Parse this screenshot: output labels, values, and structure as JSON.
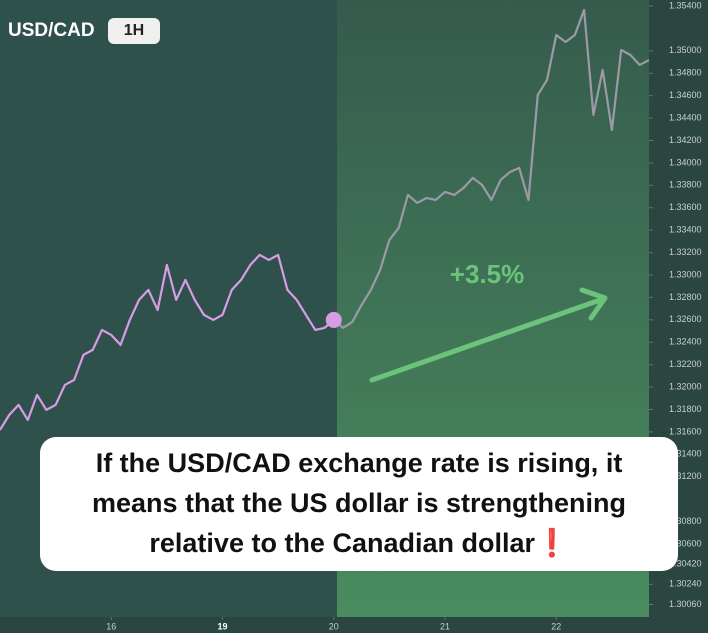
{
  "chart_data": {
    "type": "line",
    "title": "USD/CAD",
    "badge": "1H",
    "annotation": "+3.5%",
    "caption": [
      "If the USD/CAD exchange rate is rising, it",
      "means that the US dollar is strengthening",
      "relative to the Canadian dollar❗"
    ],
    "x": [
      -24,
      -22,
      -20,
      -18,
      -16,
      -14,
      -12,
      -10,
      -8,
      -6,
      -4,
      -2,
      0,
      2,
      4,
      6,
      8,
      10,
      12,
      14,
      16,
      18,
      20,
      22,
      24,
      26,
      28,
      30,
      32,
      34,
      36,
      38,
      40,
      42,
      44,
      46,
      48,
      50,
      52,
      54,
      56,
      58,
      60,
      62,
      64,
      66,
      68,
      70,
      72,
      74,
      76,
      78,
      80,
      82,
      84,
      86,
      88,
      90,
      92,
      94,
      96,
      98,
      100,
      102,
      104,
      106,
      108,
      110,
      112,
      114,
      116
    ],
    "series": [
      {
        "color": "#d89ce7",
        "values": [
          1.31618,
          1.31752,
          1.31841,
          1.31707,
          1.3193,
          1.31796,
          1.31841,
          1.32019,
          1.32064,
          1.32287,
          1.32332,
          1.3251,
          1.32465,
          1.32376,
          1.32599,
          1.32778,
          1.32867,
          1.32688,
          1.3309,
          1.32778,
          1.32956,
          1.32778,
          1.32644,
          1.32599,
          1.32644,
          1.32867,
          1.32956,
          1.3309,
          1.33179,
          1.33134,
          1.33179,
          1.32867,
          1.32778,
          1.32644,
          1.3251,
          1.32528,
          1.32599,
          null,
          null,
          null,
          null,
          null,
          null,
          null,
          null,
          null,
          null,
          null,
          null,
          null,
          null,
          null,
          null,
          null,
          null,
          null,
          null,
          null,
          null,
          null,
          null,
          null,
          null,
          null,
          null,
          null,
          null,
          null,
          null,
          null,
          null
        ]
      },
      {
        "color": "#9b9aa6",
        "values": [
          null,
          null,
          null,
          null,
          null,
          null,
          null,
          null,
          null,
          null,
          null,
          null,
          null,
          null,
          null,
          null,
          null,
          null,
          null,
          null,
          null,
          null,
          null,
          null,
          null,
          null,
          null,
          null,
          null,
          null,
          null,
          null,
          null,
          null,
          null,
          null,
          1.32599,
          1.32528,
          1.32581,
          1.32733,
          1.32867,
          1.33045,
          1.33313,
          1.3342,
          1.33714,
          1.33643,
          1.33687,
          1.3367,
          1.33741,
          1.33714,
          1.33777,
          1.33866,
          1.33803,
          1.3367,
          1.33848,
          1.33919,
          1.33955,
          1.3367,
          1.34606,
          1.3474,
          1.35141,
          1.35079,
          1.35141,
          1.35364,
          1.34428,
          1.34829,
          1.34294,
          1.35008,
          1.34963,
          1.34874,
          1.34918
        ]
      }
    ],
    "xlim": [
      -24,
      116
    ],
    "xticks": [
      {
        "value": 0,
        "label": "16"
      },
      {
        "value": 24,
        "label": "19"
      },
      {
        "value": 48,
        "label": "20"
      },
      {
        "value": 72,
        "label": "21"
      },
      {
        "value": 96,
        "label": "22"
      }
    ],
    "ylim": [
      1.3006,
      1.354
    ],
    "yticks": [
      {
        "value": 1.354,
        "label": "1.35400"
      },
      {
        "value": 1.35,
        "label": "1.35000"
      },
      {
        "value": 1.348,
        "label": "1.34800"
      },
      {
        "value": 1.346,
        "label": "1.34600"
      },
      {
        "value": 1.344,
        "label": "1.34400"
      },
      {
        "value": 1.342,
        "label": "1.34200"
      },
      {
        "value": 1.34,
        "label": "1.34000"
      },
      {
        "value": 1.338,
        "label": "1.33800"
      },
      {
        "value": 1.336,
        "label": "1.33600"
      },
      {
        "value": 1.334,
        "label": "1.33400"
      },
      {
        "value": 1.332,
        "label": "1.33200"
      },
      {
        "value": 1.33,
        "label": "1.33000"
      },
      {
        "value": 1.328,
        "label": "1.32800"
      },
      {
        "value": 1.326,
        "label": "1.32600"
      },
      {
        "value": 1.324,
        "label": "1.32400"
      },
      {
        "value": 1.322,
        "label": "1.32200"
      },
      {
        "value": 1.32,
        "label": "1.32000"
      },
      {
        "value": 1.318,
        "label": "1.31800"
      },
      {
        "value": 1.316,
        "label": "1.31600"
      },
      {
        "value": 1.314,
        "label": "1.31400"
      },
      {
        "value": 1.312,
        "label": "1.31200"
      },
      {
        "value": 1.308,
        "label": "1.30800"
      },
      {
        "value": 1.306,
        "label": "1.30600"
      },
      {
        "value": 1.3042,
        "label": "1.30420"
      },
      {
        "value": 1.3024,
        "label": "1.30240"
      },
      {
        "value": 1.3006,
        "label": "1.30060"
      }
    ]
  }
}
